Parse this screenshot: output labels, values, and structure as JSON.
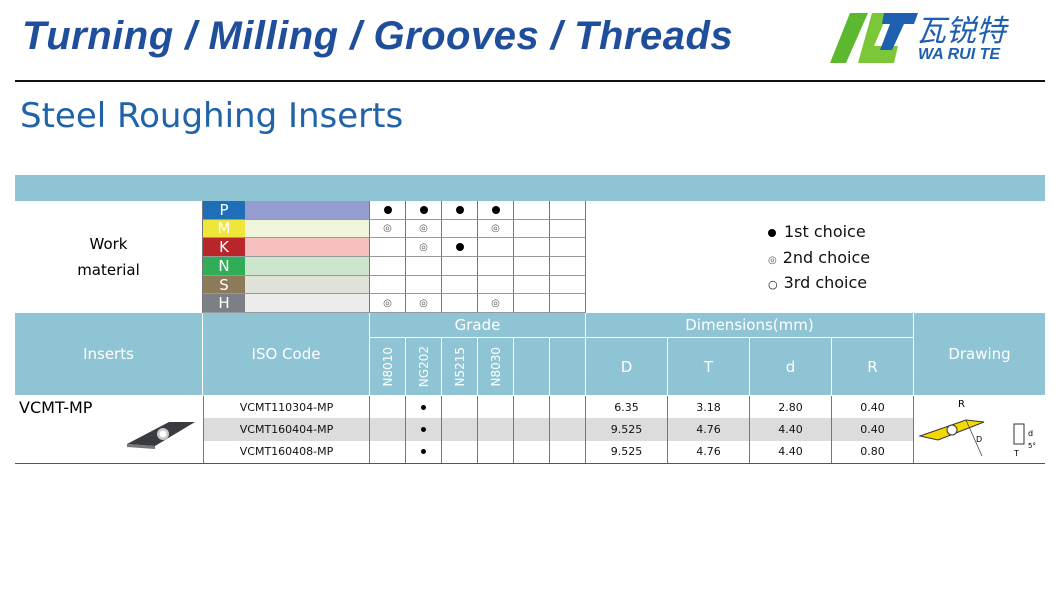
{
  "header": {
    "banner": "Turning / Milling / Grooves / Threads",
    "logo_cn": "瓦锐特",
    "logo_en": "WA RUI TE"
  },
  "title": "Steel Roughing Inserts",
  "work_material": {
    "label_1": "Work",
    "label_2": "material",
    "rows": [
      {
        "code": "P",
        "color": "#1f6fb8",
        "bar": "#959cd0",
        "marks": [
          "1",
          "1",
          "1",
          "1",
          "",
          ""
        ]
      },
      {
        "code": "M",
        "color": "#eee63a",
        "bar": "#eef5d8",
        "marks": [
          "2",
          "2",
          "",
          "2",
          "",
          ""
        ]
      },
      {
        "code": "K",
        "color": "#b8262c",
        "bar": "#f7c0c0",
        "marks": [
          "",
          "2",
          "1",
          "",
          "",
          ""
        ]
      },
      {
        "code": "N",
        "color": "#2fae57",
        "bar": "#cbe6cc",
        "marks": [
          "",
          "",
          "",
          "",
          "",
          ""
        ]
      },
      {
        "code": "S",
        "color": "#8c7a58",
        "bar": "#e0e2da",
        "marks": [
          "",
          "",
          "",
          "",
          "",
          ""
        ]
      },
      {
        "code": "H",
        "color": "#7c8086",
        "bar": "#ececec",
        "marks": [
          "2",
          "2",
          "",
          "2",
          "",
          ""
        ]
      }
    ]
  },
  "legend": {
    "first": "1st choice",
    "second": "2nd choice",
    "third": "3rd choice"
  },
  "table": {
    "inserts": "Inserts",
    "iso": "ISO Code",
    "grade": "Grade",
    "grades": [
      "N8010",
      "NG202",
      "N5215",
      "N8030",
      "",
      ""
    ],
    "dimensions": "Dimensions(mm)",
    "dim_cols": [
      "D",
      "T",
      "d",
      "R"
    ],
    "drawing": "Drawing",
    "insert_name": "VCMT-MP",
    "rows": [
      {
        "iso": "VCMT110304-MP",
        "grade_marks": [
          "",
          "1",
          "",
          "",
          "",
          ""
        ],
        "D": "6.35",
        "T": "3.18",
        "d": "2.80",
        "R": "0.40"
      },
      {
        "iso": "VCMT160404-MP",
        "grade_marks": [
          "",
          "1",
          "",
          "",
          "",
          ""
        ],
        "D": "9.525",
        "T": "4.76",
        "d": "4.40",
        "R": "0.40"
      },
      {
        "iso": "VCMT160408-MP",
        "grade_marks": [
          "",
          "1",
          "",
          "",
          "",
          ""
        ],
        "D": "9.525",
        "T": "4.76",
        "d": "4.40",
        "R": "0.80"
      }
    ]
  },
  "colors": {
    "header_band": "#8fc4d4",
    "title": "#2063a8",
    "banner": "#1f4e9a"
  }
}
